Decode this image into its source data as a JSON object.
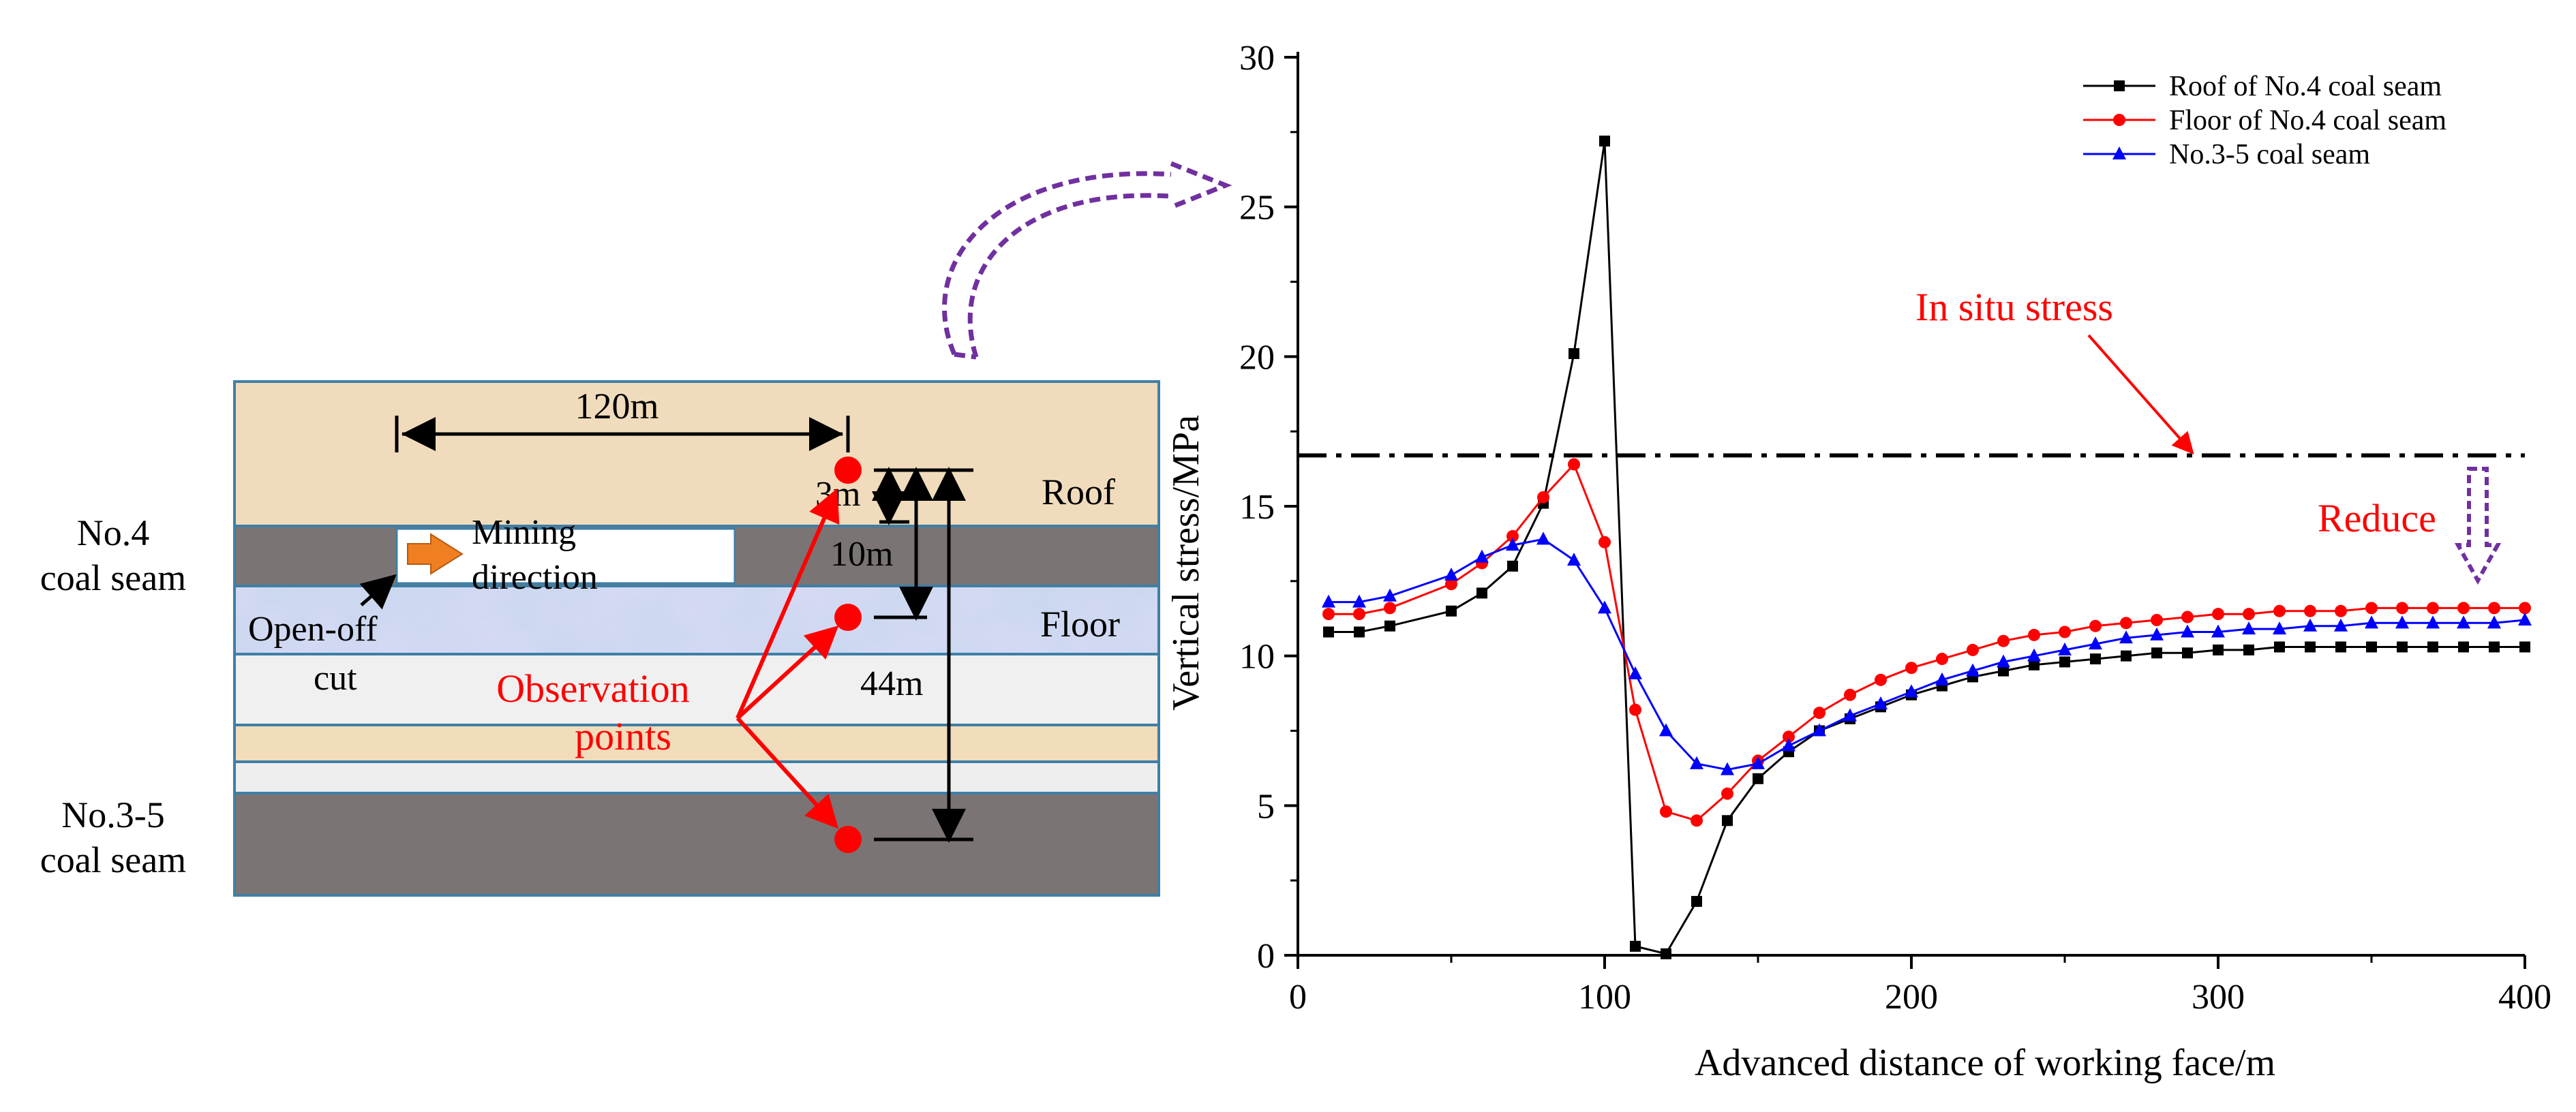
{
  "diagram": {
    "label_no4_line1": "No.4",
    "label_no4_line2": "coal seam",
    "label_no35_line1": "No.3-5",
    "label_no35_line2": "coal seam",
    "dim_120m": "120m",
    "dim_3m": "3m",
    "dim_10m": "10m",
    "dim_44m": "44m",
    "roof_label": "Roof",
    "floor_label": "Floor",
    "mining_line1": "Mining",
    "mining_line2": "direction",
    "openoff_line1": "Open-off",
    "openoff_line2": "cut",
    "obs_line1": "Observation",
    "obs_line2": "points",
    "colors": {
      "sandstone": "#f1dcbb",
      "coal": "#7b7474",
      "floor_band": "#c7d8ee",
      "light_band": "#f3f3f3",
      "border": "#3f7fa6",
      "arrow_orange": "#f07f22",
      "red": "#ff0000"
    }
  },
  "annotations": {
    "in_situ_label": "In situ stress",
    "reduce_label": "Reduce",
    "accent_purple": "#7030a0"
  },
  "chart_data": {
    "type": "line",
    "title": "",
    "xlabel": "Advanced distance of working face/m",
    "ylabel": "Vertical stress/MPa",
    "xlim": [
      0,
      400
    ],
    "ylim": [
      0,
      30
    ],
    "xticks": [
      0,
      100,
      200,
      300,
      400
    ],
    "yticks": [
      0,
      5,
      10,
      15,
      20,
      25,
      30
    ],
    "reference_line": {
      "y": 16.7,
      "label": "In situ stress",
      "style": "dash-dot"
    },
    "legend_position": "top-right",
    "series": [
      {
        "name": "Roof of No.4 coal seam",
        "color": "#000000",
        "marker": "square",
        "x": [
          10,
          20,
          30,
          50,
          60,
          70,
          80,
          90,
          100,
          110,
          120,
          130,
          140,
          150,
          160,
          170,
          180,
          190,
          200,
          210,
          220,
          230,
          240,
          250,
          260,
          270,
          280,
          290,
          300,
          310,
          320,
          330,
          340,
          350,
          360,
          370,
          380,
          390,
          400
        ],
        "y": [
          10.8,
          10.8,
          11.0,
          11.5,
          12.1,
          13.0,
          15.1,
          20.1,
          27.2,
          0.3,
          0.05,
          1.8,
          4.5,
          5.9,
          6.8,
          7.5,
          7.9,
          8.3,
          8.7,
          9.0,
          9.3,
          9.5,
          9.7,
          9.8,
          9.9,
          10.0,
          10.1,
          10.1,
          10.2,
          10.2,
          10.3,
          10.3,
          10.3,
          10.3,
          10.3,
          10.3,
          10.3,
          10.3,
          10.3
        ]
      },
      {
        "name": "Floor of No.4 coal seam",
        "color": "#ff0000",
        "marker": "circle",
        "x": [
          10,
          20,
          30,
          50,
          60,
          70,
          80,
          90,
          100,
          110,
          120,
          130,
          140,
          150,
          160,
          170,
          180,
          190,
          200,
          210,
          220,
          230,
          240,
          250,
          260,
          270,
          280,
          290,
          300,
          310,
          320,
          330,
          340,
          350,
          360,
          370,
          380,
          390,
          400
        ],
        "y": [
          11.4,
          11.4,
          11.6,
          12.4,
          13.1,
          14.0,
          15.3,
          16.4,
          13.8,
          8.2,
          4.8,
          4.5,
          5.4,
          6.5,
          7.3,
          8.1,
          8.7,
          9.2,
          9.6,
          9.9,
          10.2,
          10.5,
          10.7,
          10.8,
          11.0,
          11.1,
          11.2,
          11.3,
          11.4,
          11.4,
          11.5,
          11.5,
          11.5,
          11.6,
          11.6,
          11.6,
          11.6,
          11.6,
          11.6
        ]
      },
      {
        "name": "No.3-5 coal seam",
        "color": "#0000ff",
        "marker": "triangle",
        "x": [
          10,
          20,
          30,
          50,
          60,
          70,
          80,
          90,
          100,
          110,
          120,
          130,
          140,
          150,
          160,
          170,
          180,
          190,
          200,
          210,
          220,
          230,
          240,
          250,
          260,
          270,
          280,
          290,
          300,
          310,
          320,
          330,
          340,
          350,
          360,
          370,
          380,
          390,
          400
        ],
        "y": [
          11.8,
          11.8,
          12.0,
          12.7,
          13.3,
          13.7,
          13.9,
          13.2,
          11.6,
          9.4,
          7.5,
          6.4,
          6.2,
          6.4,
          7.0,
          7.5,
          8.0,
          8.4,
          8.8,
          9.2,
          9.5,
          9.8,
          10.0,
          10.2,
          10.4,
          10.6,
          10.7,
          10.8,
          10.8,
          10.9,
          10.9,
          11.0,
          11.0,
          11.1,
          11.1,
          11.1,
          11.1,
          11.1,
          11.2
        ]
      }
    ]
  }
}
